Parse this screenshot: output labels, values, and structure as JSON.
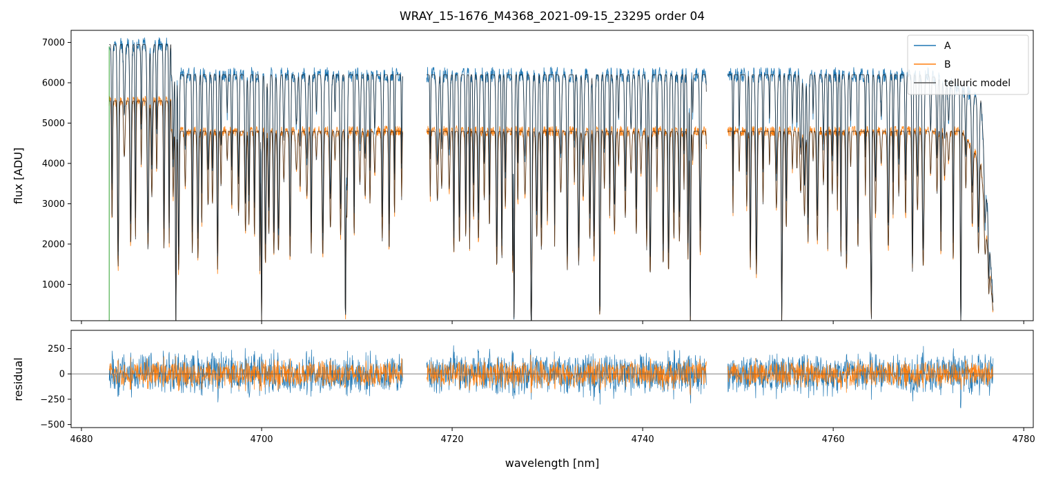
{
  "chart_data": [
    {
      "type": "line",
      "title": "WRAY_15-1676_M4368_2021-09-15_23295  order 04",
      "xlabel": "",
      "ylabel": "flux [ADU]",
      "xlim": [
        4680,
        4781
      ],
      "ylim": [
        100,
        7300
      ],
      "yticks": [
        "1000",
        "2000",
        "3000",
        "4000",
        "5000",
        "6000",
        "7000"
      ],
      "legend": {
        "placement": "top-right",
        "entries": [
          "A",
          "B",
          "telluric model"
        ]
      },
      "series": [
        {
          "name": "A",
          "color": "#1f77b4",
          "valid_range": [
            4684.0,
            4776.8
          ],
          "gaps": [
            [
              4714.8,
              4717.3
            ],
            [
              4746.7,
              4748.9
            ]
          ],
          "continuum_level": 6200
        },
        {
          "name": "B",
          "color": "#ff7f0e",
          "valid_range": [
            4684.0,
            4776.8
          ],
          "gaps": [
            [
              4714.8,
              4717.3
            ],
            [
              4746.7,
              4748.9
            ]
          ],
          "continuum_level": 4800
        },
        {
          "name": "telluric model",
          "color": "#3a3a3a"
        }
      ],
      "absorption_lines_deep": [
        4691.0,
        4700.0,
        4708.8,
        4726.5,
        4728.3,
        4735.5,
        4745.0,
        4754.6,
        4764.0,
        4773.4
      ]
    },
    {
      "type": "line",
      "title": "",
      "xlabel": "wavelength [nm]",
      "ylabel": "residual",
      "xlim": [
        4680,
        4781
      ],
      "ylim": [
        -530,
        430
      ],
      "xticks": [
        "4680",
        "4700",
        "4720",
        "4740",
        "4760",
        "4780"
      ],
      "yticks": [
        "−500",
        "−250",
        "0",
        "250"
      ],
      "zero_line": true,
      "series": [
        {
          "name": "A",
          "color": "#1f77b4",
          "noise_amplitude": 260
        },
        {
          "name": "B",
          "color": "#ff7f0e",
          "noise_amplitude": 160
        }
      ]
    }
  ]
}
